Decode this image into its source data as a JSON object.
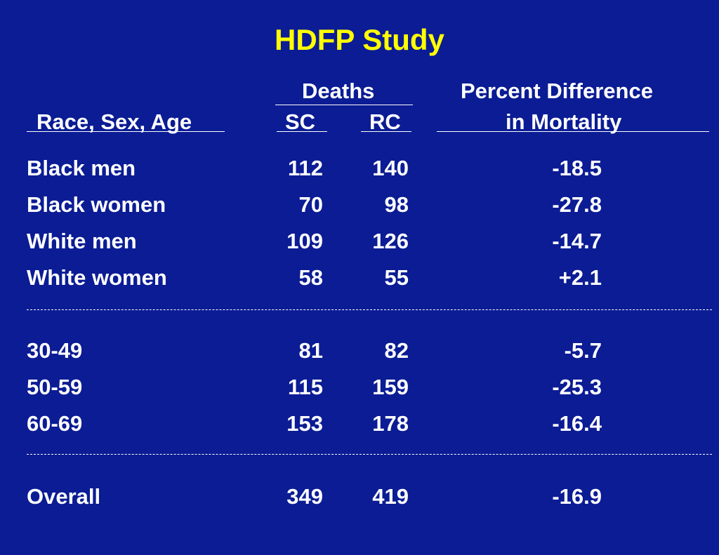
{
  "title": "HDFP Study",
  "headers": {
    "group": "Deaths",
    "col_label": "Race, Sex, Age",
    "col_sc": "SC",
    "col_rc": "RC",
    "pct_line1": "Percent Difference",
    "pct_line2": "in Mortality"
  },
  "rows": [
    {
      "label": "Black men",
      "sc": "112",
      "rc": "140",
      "pct": "-18.5"
    },
    {
      "label": "Black women",
      "sc": "70",
      "rc": "98",
      "pct": "-27.8"
    },
    {
      "label": "White men",
      "sc": "109",
      "rc": "126",
      "pct": "-14.7"
    },
    {
      "label": "White women",
      "sc": "58",
      "rc": "55",
      "pct": "+2.1"
    },
    {
      "label": "30-49",
      "sc": "81",
      "rc": "82",
      "pct": "-5.7"
    },
    {
      "label": "50-59",
      "sc": "115",
      "rc": "159",
      "pct": "-25.3"
    },
    {
      "label": "60-69",
      "sc": "153",
      "rc": "178",
      "pct": "-16.4"
    },
    {
      "label": "Overall",
      "sc": "349",
      "rc": "419",
      "pct": "-16.9"
    }
  ],
  "colors": {
    "background": "#0b1c94",
    "title": "#ffff00",
    "text": "#ffffff"
  }
}
